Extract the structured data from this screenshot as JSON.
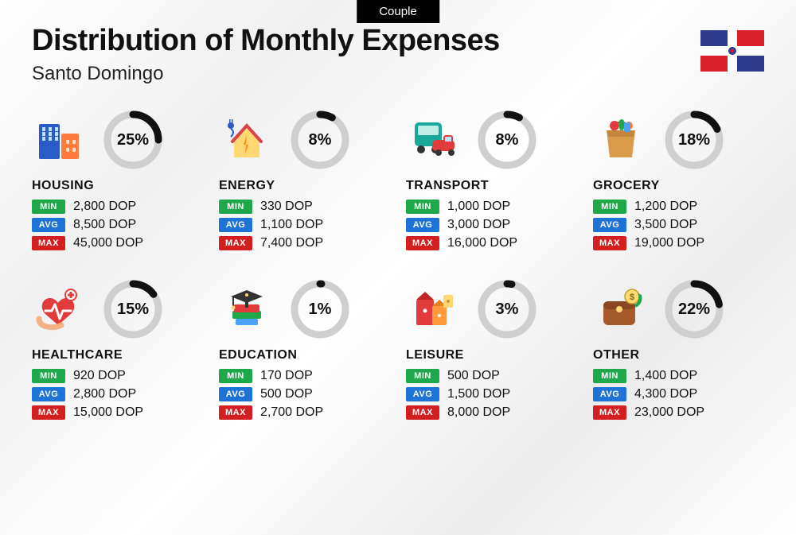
{
  "tag": "Couple",
  "title": "Distribution of Monthly Expenses",
  "subtitle": "Santo Domingo",
  "currency": "DOP",
  "badge_labels": {
    "min": "MIN",
    "avg": "AVG",
    "max": "MAX"
  },
  "colors": {
    "min_badge": "#1fa84a",
    "avg_badge": "#1e73d6",
    "max_badge": "#d31f1f",
    "donut_track": "#cfcfcf",
    "donut_fill": "#111111",
    "text": "#111111",
    "tag_bg": "#000000"
  },
  "flag": {
    "blue": "#2e3b8f",
    "red": "#d8202a",
    "white": "#ffffff"
  },
  "categories": [
    {
      "name": "HOUSING",
      "pct": 25,
      "min": "2,800",
      "avg": "8,500",
      "max": "45,000",
      "icon": "buildings"
    },
    {
      "name": "ENERGY",
      "pct": 8,
      "min": "330",
      "avg": "1,100",
      "max": "7,400",
      "icon": "energy"
    },
    {
      "name": "TRANSPORT",
      "pct": 8,
      "min": "1,000",
      "avg": "3,000",
      "max": "16,000",
      "icon": "transport"
    },
    {
      "name": "GROCERY",
      "pct": 18,
      "min": "1,200",
      "avg": "3,500",
      "max": "19,000",
      "icon": "grocery"
    },
    {
      "name": "HEALTHCARE",
      "pct": 15,
      "min": "920",
      "avg": "2,800",
      "max": "15,000",
      "icon": "healthcare"
    },
    {
      "name": "EDUCATION",
      "pct": 1,
      "min": "170",
      "avg": "500",
      "max": "2,700",
      "icon": "education"
    },
    {
      "name": "LEISURE",
      "pct": 3,
      "min": "500",
      "avg": "1,500",
      "max": "8,000",
      "icon": "leisure"
    },
    {
      "name": "OTHER",
      "pct": 22,
      "min": "1,400",
      "avg": "4,300",
      "max": "23,000",
      "icon": "other"
    }
  ],
  "donut": {
    "size": 78,
    "stroke": 9,
    "radius": 32
  }
}
